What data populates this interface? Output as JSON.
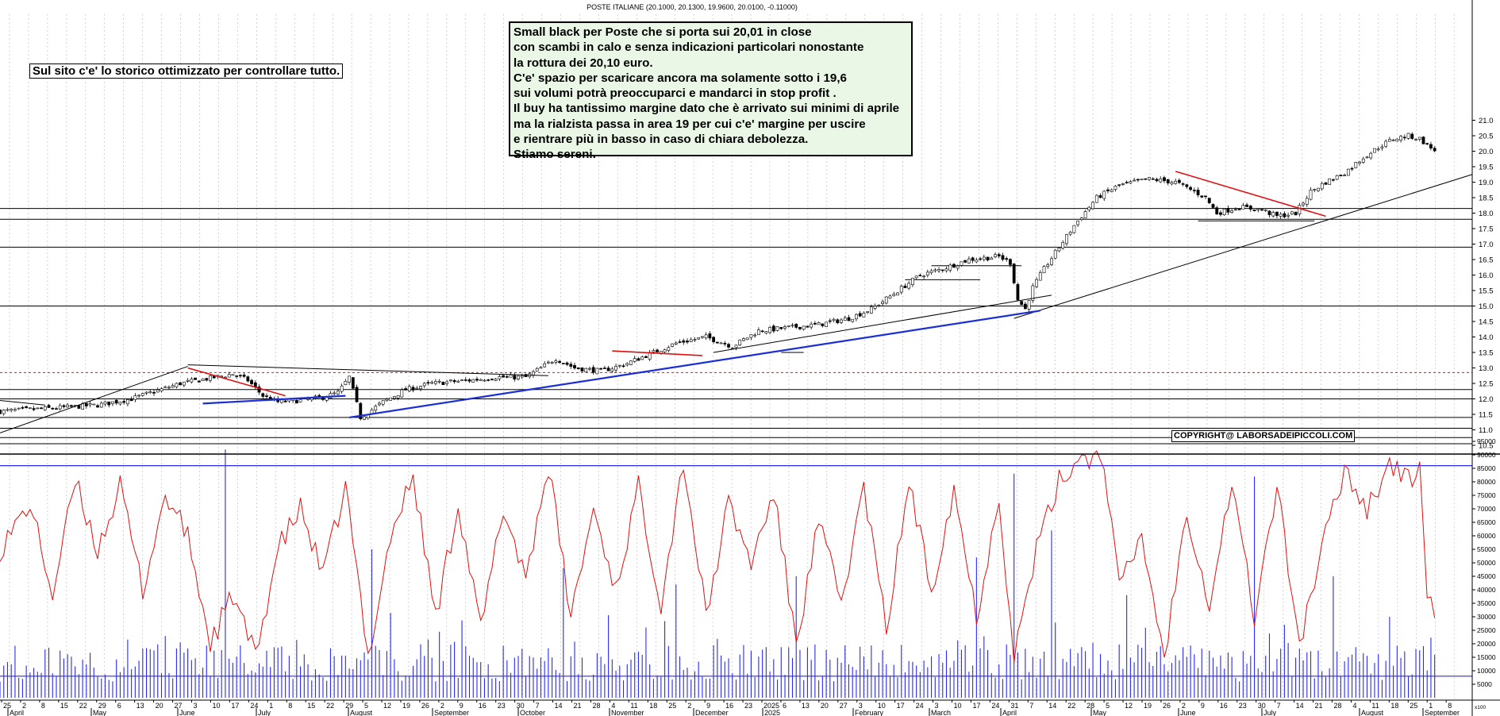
{
  "chart_title": "POSTE ITALIANE (20.1000, 20.1300, 19.9600, 20.0100, -0.11000)",
  "site_note": "Sul sito c'e' lo storico ottimizzato per controllare tutto.",
  "copyright": "COPYRIGHT@ LABORSADEIPICCOLI.COM",
  "comment_lines": [
    "Small black per Poste che si porta sui 20,01 in close",
    "con scambi in calo e senza indicazioni particolari nonostante",
    "la rottura dei 20,10 euro.",
    "C'e' spazio per scaricare ancora ma solamente sotto i 19,6",
    "sui volumi potrà preoccuparci e mandarci in stop profit .",
    "Il buy ha tantissimo margine dato che è arrivato sui minimi di aprile",
    "ma la rialzista passa in area 19 per cui c'e' margine per uscire",
    "e rientrare più in basso in caso di chiara debolezza.",
    "Stiamo sereni."
  ],
  "colors": {
    "background": "#ffffff",
    "grid": "#b8b8b8",
    "trend_blue": "#1a2fd6",
    "trend_red": "#e01010",
    "support_line": "#000000",
    "dashed_level": "#e01010",
    "oscillator": "#e01010",
    "volume": "#2a2af0",
    "note_box": "#eaf7e6"
  },
  "chart_data": [
    {
      "type": "candlestick",
      "title": "POSTE ITALIANE (20.1000, 20.1300, 19.9600, 20.0100, -0.11000)",
      "last_bar": {
        "open": 20.1,
        "high": 20.13,
        "low": 19.96,
        "close": 20.01,
        "change": -0.11
      },
      "y_ticks": [
        10.5,
        11.0,
        11.5,
        12.0,
        12.5,
        13.0,
        13.5,
        14.0,
        14.5,
        15.0,
        15.5,
        16.0,
        16.5,
        17.0,
        17.5,
        18.0,
        18.5,
        19.0,
        19.5,
        20.0,
        20.5,
        21.0
      ],
      "ylim": [
        10.4,
        21.25
      ],
      "close_path": [
        [
          0,
          11.6
        ],
        [
          14,
          11.7
        ],
        [
          26,
          11.8
        ],
        [
          35,
          12.0
        ],
        [
          48,
          12.5
        ],
        [
          62,
          12.8
        ],
        [
          66,
          12.6
        ],
        [
          70,
          12.1
        ],
        [
          74,
          11.9
        ],
        [
          80,
          11.95
        ],
        [
          86,
          12.05
        ],
        [
          90,
          12.2
        ],
        [
          93,
          12.7
        ],
        [
          96,
          11.4
        ],
        [
          102,
          11.9
        ],
        [
          108,
          12.3
        ],
        [
          115,
          12.5
        ],
        [
          125,
          12.6
        ],
        [
          132,
          12.7
        ],
        [
          140,
          12.7
        ],
        [
          148,
          13.3
        ],
        [
          153,
          13.0
        ],
        [
          160,
          12.9
        ],
        [
          166,
          13.1
        ],
        [
          172,
          13.4
        ],
        [
          180,
          13.8
        ],
        [
          188,
          14.0
        ],
        [
          195,
          13.7
        ],
        [
          202,
          14.2
        ],
        [
          210,
          14.3
        ],
        [
          218,
          14.4
        ],
        [
          226,
          14.6
        ],
        [
          232,
          14.9
        ],
        [
          238,
          15.4
        ],
        [
          245,
          16.0
        ],
        [
          251,
          16.2
        ],
        [
          258,
          16.5
        ],
        [
          266,
          16.6
        ],
        [
          269,
          16.4
        ],
        [
          271,
          15.2
        ],
        [
          273,
          14.9
        ],
        [
          275,
          15.6
        ],
        [
          278,
          16.2
        ],
        [
          282,
          16.9
        ],
        [
          286,
          17.6
        ],
        [
          292,
          18.5
        ],
        [
          298,
          18.9
        ],
        [
          306,
          19.1
        ],
        [
          313,
          19.0
        ],
        [
          318,
          18.7
        ],
        [
          321,
          18.5
        ],
        [
          324,
          18.0
        ],
        [
          330,
          18.2
        ],
        [
          336,
          18.1
        ],
        [
          340,
          17.9
        ],
        [
          345,
          18.0
        ],
        [
          349,
          18.7
        ],
        [
          353,
          19.0
        ],
        [
          358,
          19.3
        ],
        [
          363,
          19.8
        ],
        [
          368,
          20.2
        ],
        [
          371,
          20.4
        ],
        [
          375,
          20.5
        ],
        [
          378,
          20.4
        ],
        [
          382,
          20.01
        ]
      ],
      "horizontal_levels": [
        10.55,
        10.75,
        11.05,
        11.4,
        12.0,
        12.3,
        15.0,
        16.9,
        17.8,
        18.15
      ],
      "dashed_level": 12.85,
      "blue_trendlines": [
        {
          "from": [
            54,
            11.85
          ],
          "to": [
            92,
            12.1
          ]
        },
        {
          "from": [
            93,
            11.4
          ],
          "to": [
            277,
            14.85
          ]
        }
      ],
      "red_trendlines": [
        {
          "from": [
            50,
            13.0
          ],
          "to": [
            76,
            12.1
          ]
        },
        {
          "from": [
            163,
            13.55
          ],
          "to": [
            187,
            13.4
          ]
        },
        {
          "from": [
            313,
            19.35
          ],
          "to": [
            353,
            17.9
          ]
        }
      ],
      "black_trendlines": [
        {
          "from": [
            0,
            11.95
          ],
          "to": [
            12,
            11.8
          ]
        },
        {
          "from": [
            0,
            10.9
          ],
          "to": [
            50,
            13.05
          ]
        },
        {
          "from": [
            50,
            13.1
          ],
          "to": [
            146,
            12.75
          ]
        },
        {
          "from": [
            190,
            13.5
          ],
          "to": [
            280,
            15.35
          ]
        },
        {
          "from": [
            270,
            14.6
          ],
          "to": [
            392,
            19.25
          ]
        }
      ],
      "short_segments": [
        {
          "from": [
            241,
            15.85
          ],
          "to": [
            261,
            15.85
          ]
        },
        {
          "from": [
            248,
            16.3
          ],
          "to": [
            272,
            16.3
          ]
        },
        {
          "from": [
            208,
            13.5
          ],
          "to": [
            214,
            13.5
          ]
        },
        {
          "from": [
            319,
            17.75
          ],
          "to": [
            350,
            17.75
          ]
        }
      ]
    },
    {
      "type": "bar+line",
      "y_ticks": [
        5000,
        10000,
        15000,
        20000,
        25000,
        30000,
        35000,
        40000,
        45000,
        50000,
        55000,
        60000,
        65000,
        70000,
        75000,
        80000,
        85000,
        90000,
        95000
      ],
      "ylim": [
        0,
        100000
      ],
      "y_label": "x100",
      "upper_level": 86000,
      "lower_level": 8000,
      "volume_spikes": [
        [
          60,
          92000
        ],
        [
          99,
          55000
        ],
        [
          150,
          48000
        ],
        [
          180,
          42000
        ],
        [
          212,
          45000
        ],
        [
          260,
          52000
        ],
        [
          270,
          83000
        ],
        [
          280,
          62000
        ],
        [
          300,
          38000
        ],
        [
          334,
          82000
        ],
        [
          355,
          45000
        ],
        [
          370,
          30000
        ]
      ],
      "oscillator_path": [
        [
          0,
          55000
        ],
        [
          8,
          72000
        ],
        [
          14,
          38000
        ],
        [
          20,
          80000
        ],
        [
          26,
          55000
        ],
        [
          32,
          78000
        ],
        [
          38,
          40000
        ],
        [
          44,
          75000
        ],
        [
          50,
          60000
        ],
        [
          56,
          20000
        ],
        [
          62,
          38000
        ],
        [
          68,
          15000
        ],
        [
          74,
          55000
        ],
        [
          80,
          70000
        ],
        [
          86,
          45000
        ],
        [
          92,
          78000
        ],
        [
          98,
          15000
        ],
        [
          104,
          60000
        ],
        [
          110,
          82000
        ],
        [
          116,
          30000
        ],
        [
          122,
          72000
        ],
        [
          128,
          25000
        ],
        [
          134,
          70000
        ],
        [
          140,
          45000
        ],
        [
          146,
          86000
        ],
        [
          152,
          30000
        ],
        [
          158,
          70000
        ],
        [
          164,
          40000
        ],
        [
          170,
          78000
        ],
        [
          176,
          35000
        ],
        [
          182,
          88000
        ],
        [
          188,
          30000
        ],
        [
          194,
          72000
        ],
        [
          200,
          50000
        ],
        [
          206,
          76000
        ],
        [
          212,
          20000
        ],
        [
          218,
          65000
        ],
        [
          224,
          35000
        ],
        [
          230,
          78000
        ],
        [
          236,
          25000
        ],
        [
          242,
          80000
        ],
        [
          248,
          40000
        ],
        [
          254,
          78000
        ],
        [
          260,
          30000
        ],
        [
          266,
          75000
        ],
        [
          270,
          15000
        ],
        [
          276,
          55000
        ],
        [
          282,
          80000
        ],
        [
          288,
          90000
        ],
        [
          294,
          88000
        ],
        [
          298,
          40000
        ],
        [
          304,
          60000
        ],
        [
          310,
          15000
        ],
        [
          316,
          70000
        ],
        [
          322,
          35000
        ],
        [
          328,
          80000
        ],
        [
          334,
          30000
        ],
        [
          340,
          78000
        ],
        [
          346,
          20000
        ],
        [
          352,
          55000
        ],
        [
          358,
          85000
        ],
        [
          364,
          70000
        ],
        [
          370,
          87000
        ],
        [
          375,
          80000
        ],
        [
          378,
          86000
        ],
        [
          380,
          40000
        ],
        [
          382,
          28000
        ]
      ]
    }
  ],
  "price_axis_labels": [
    "10.5",
    "11.0",
    "11.5",
    "12.0",
    "12.5",
    "13.0",
    "13.5",
    "14.0",
    "14.5",
    "15.0",
    "15.5",
    "16.0",
    "16.5",
    "17.0",
    "17.5",
    "18.0",
    "18.5",
    "19.0",
    "19.5",
    "20.0",
    "20.5",
    "21.0"
  ],
  "volume_axis_labels": [
    "5000",
    "10000",
    "15000",
    "20000",
    "25000",
    "30000",
    "35000",
    "40000",
    "45000",
    "50000",
    "55000",
    "60000",
    "65000",
    "70000",
    "75000",
    "80000",
    "85000",
    "90000",
    "95000"
  ],
  "volume_axis_unit": "x100",
  "day_labels": [
    "25",
    "2",
    "8",
    "15",
    "22",
    "29",
    "6",
    "13",
    "20",
    "27",
    "3",
    "10",
    "17",
    "24",
    "1",
    "8",
    "15",
    "22",
    "29",
    "5",
    "12",
    "19",
    "26",
    "2",
    "9",
    "16",
    "23",
    "30",
    "7",
    "14",
    "21",
    "28",
    "4",
    "11",
    "18",
    "25",
    "2",
    "9",
    "16",
    "23",
    "2025",
    "6",
    "13",
    "20",
    "27",
    "3",
    "10",
    "17",
    "24",
    "3",
    "10",
    "17",
    "24",
    "31",
    "7",
    "14",
    "22",
    "28",
    "5",
    "12",
    "19",
    "26",
    "2",
    "9",
    "16",
    "23",
    "30",
    "7",
    "14",
    "21",
    "28",
    "4",
    "11",
    "18",
    "25",
    "1",
    "8"
  ],
  "month_labels": [
    "April",
    "May",
    "June",
    "July",
    "August",
    "September",
    "October",
    "November",
    "December",
    "2025",
    "February",
    "March",
    "April",
    "May",
    "June",
    "July",
    "August",
    "September"
  ]
}
